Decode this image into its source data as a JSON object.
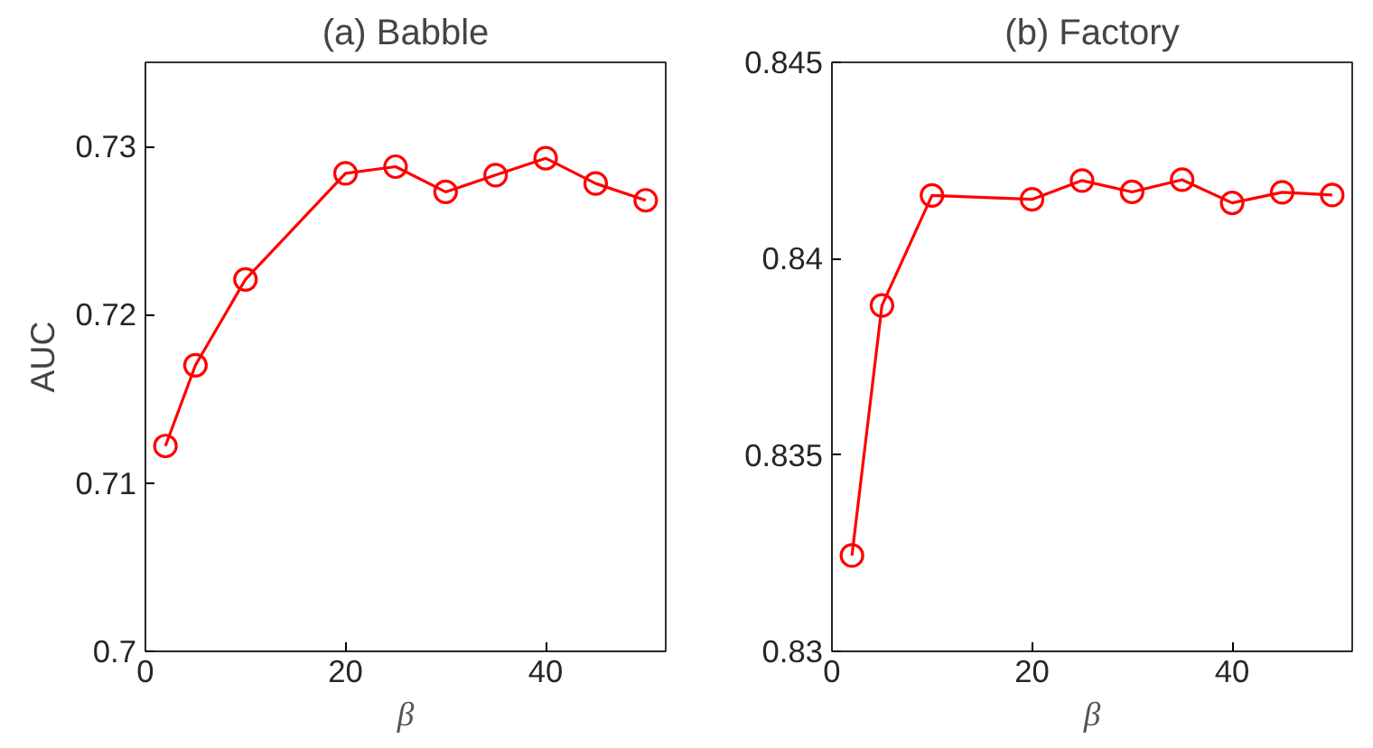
{
  "chart_data": [
    {
      "type": "line",
      "title": "(a) Babble",
      "xlabel": "β",
      "ylabel": "AUC",
      "x": [
        2,
        5,
        10,
        20,
        25,
        30,
        35,
        40,
        45,
        50
      ],
      "series": [
        {
          "color": "#ff0000",
          "values": [
            0.7122,
            0.717,
            0.7221,
            0.7284,
            0.7288,
            0.7273,
            0.7283,
            0.7293,
            0.7278,
            0.7268
          ]
        }
      ],
      "xlim": [
        0,
        52
      ],
      "xticks": [
        0,
        20,
        40
      ],
      "ylim": [
        0.7,
        0.735
      ],
      "yticks": [
        0.7,
        0.71,
        0.72,
        0.73
      ],
      "marker": "circle",
      "line_style": "solid",
      "grid": false
    },
    {
      "type": "line",
      "title": "(b) Factory",
      "xlabel": "β",
      "x": [
        2,
        5,
        10,
        20,
        25,
        30,
        35,
        40,
        45,
        50
      ],
      "series": [
        {
          "color": "#ff0000",
          "values": [
            0.83244,
            0.83881,
            0.84161,
            0.84151,
            0.84199,
            0.8417,
            0.84201,
            0.84142,
            0.84169,
            0.84162
          ]
        }
      ],
      "xlim": [
        0,
        52
      ],
      "xticks": [
        0,
        20,
        40
      ],
      "ylim": [
        0.83,
        0.845
      ],
      "yticks": [
        0.83,
        0.835,
        0.84,
        0.845
      ],
      "marker": "circle",
      "line_style": "solid",
      "grid": false
    }
  ]
}
